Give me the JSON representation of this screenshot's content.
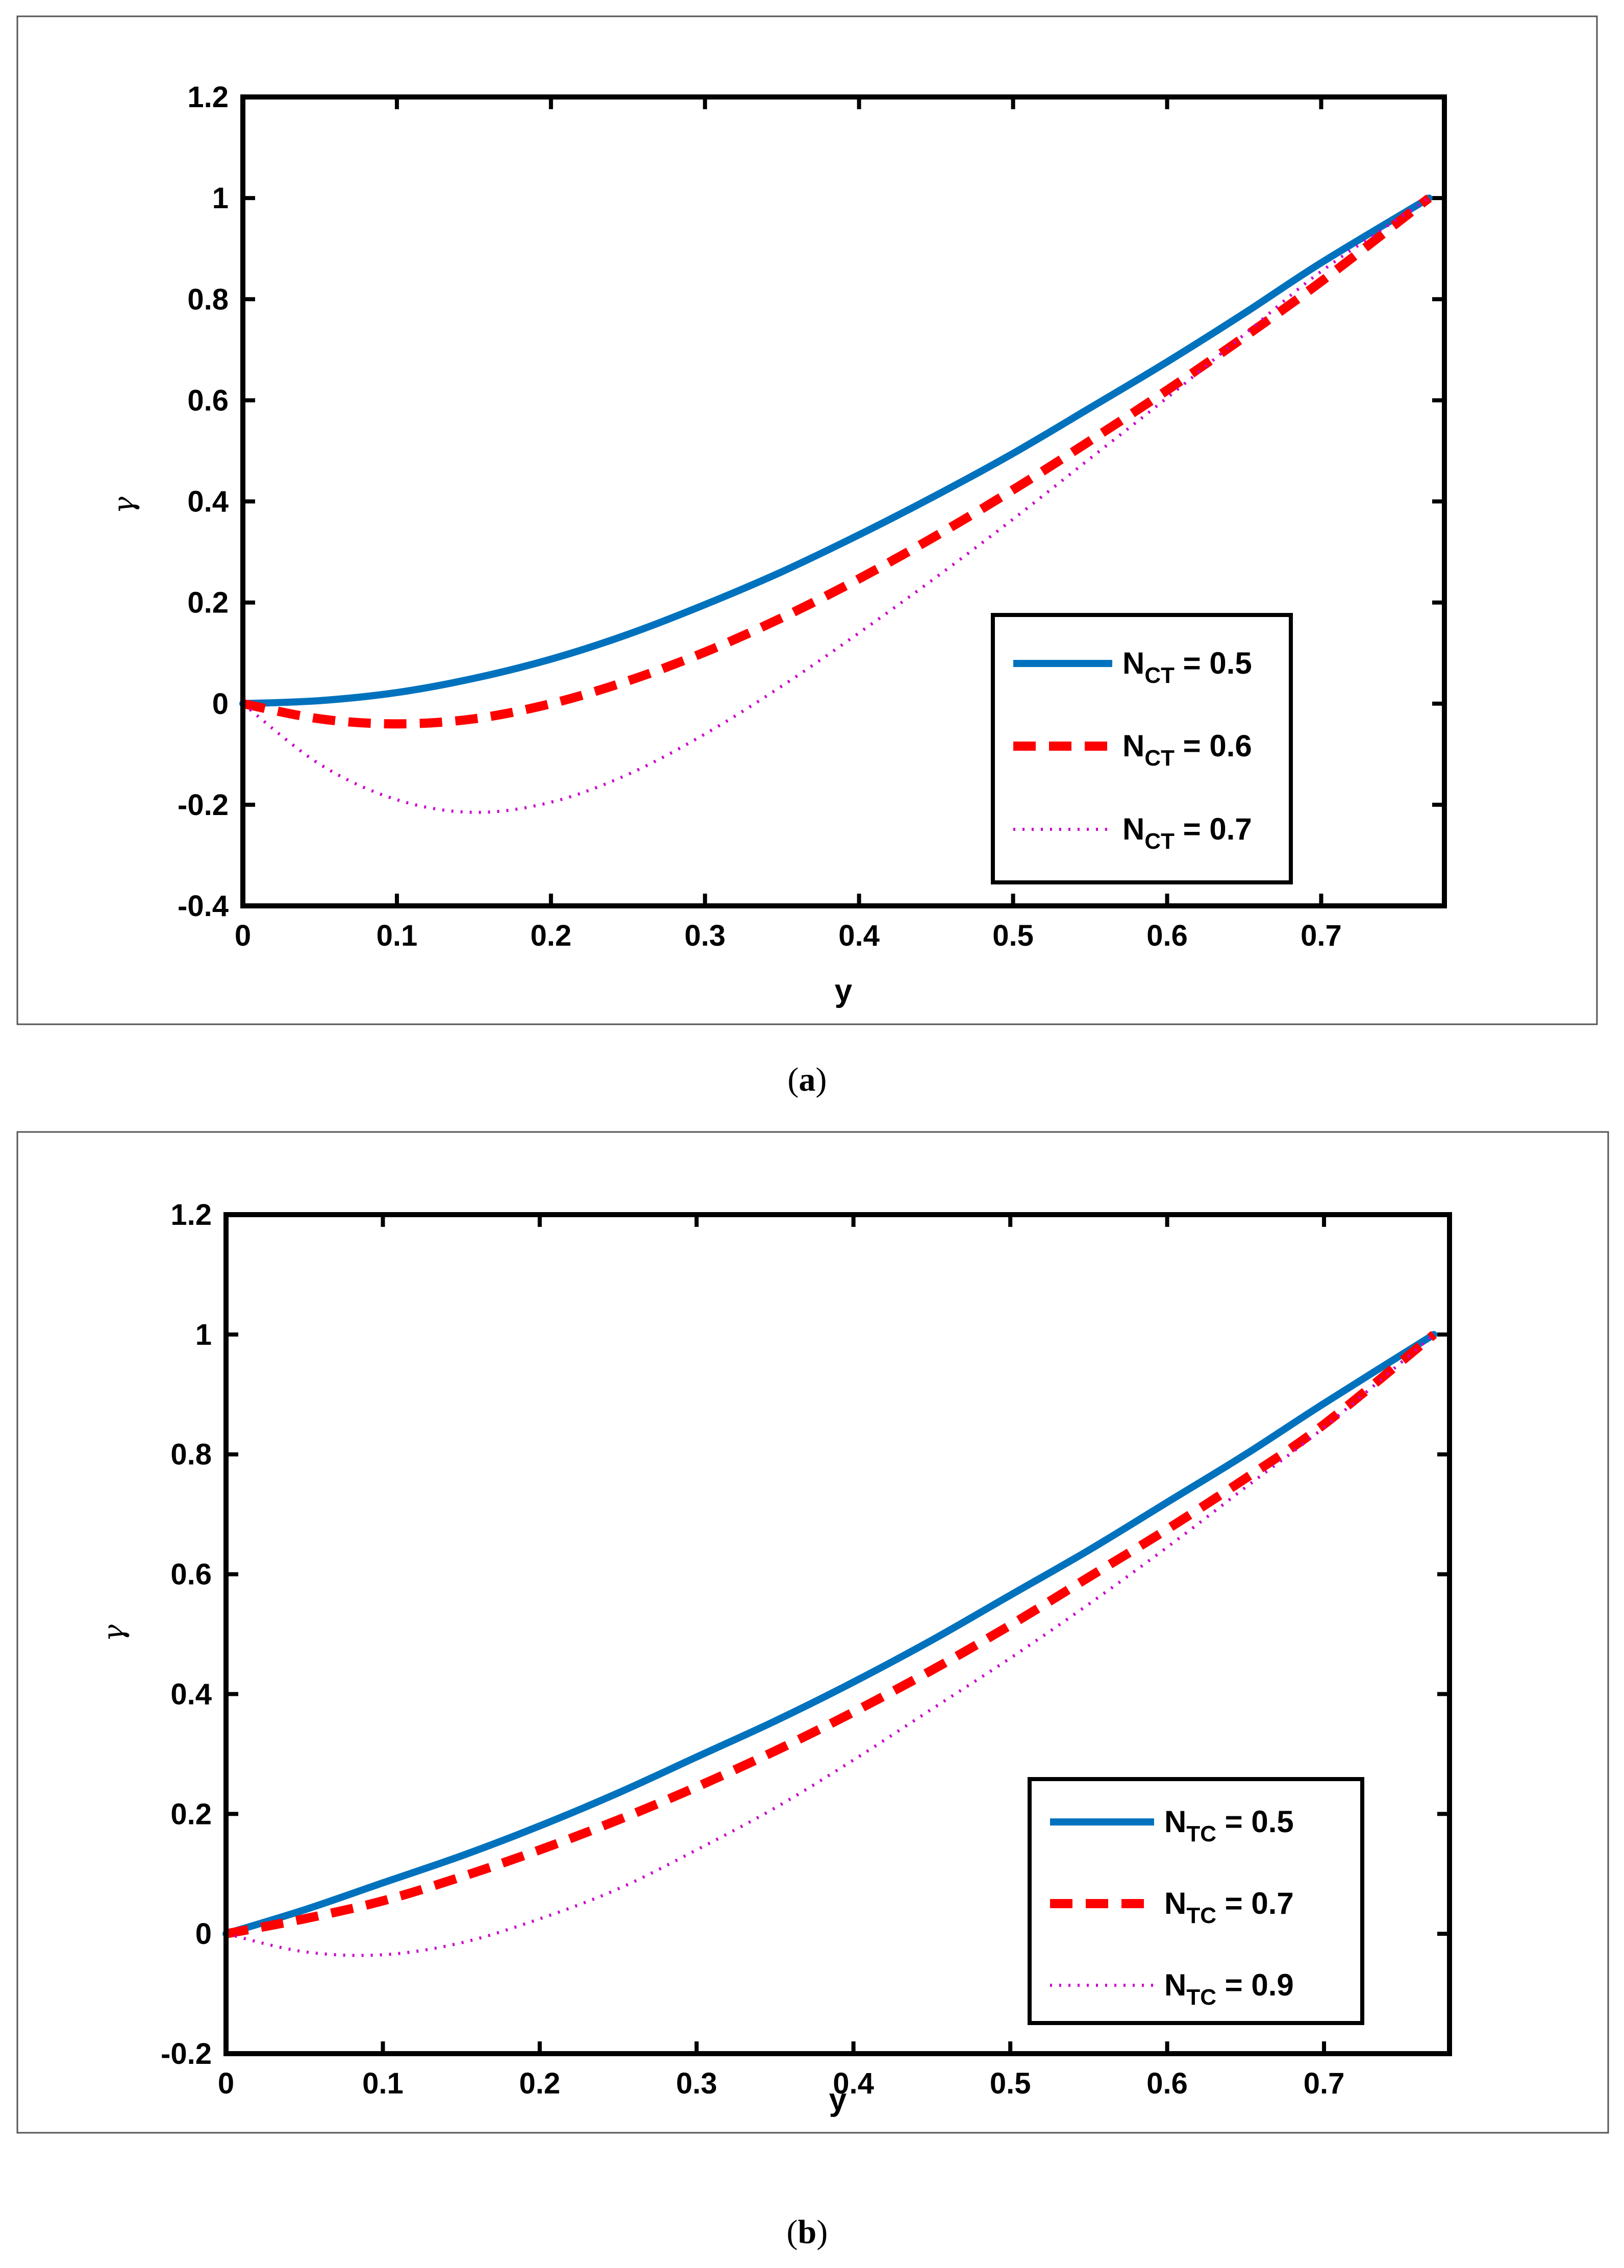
{
  "chart_data": [
    {
      "type": "line",
      "panel": "a",
      "caption_letter": "a",
      "title": "",
      "xlabel": "y",
      "ylabel": "γ",
      "xlim": [
        0,
        0.78
      ],
      "ylim": [
        -0.4,
        1.2
      ],
      "xticks": [
        "0",
        "0.1",
        "0.2",
        "0.3",
        "0.4",
        "0.5",
        "0.6",
        "0.7"
      ],
      "yticks": [
        "-0.4",
        "-0.2",
        "0",
        "0.2",
        "0.4",
        "0.6",
        "0.8",
        "1",
        "1.2"
      ],
      "legend_position": "bottom-right",
      "series": [
        {
          "name": "N_CT = 0.5",
          "label_main": "N",
          "label_sub": "CT",
          "label_rest": " = 0.5",
          "color": "#0072BD",
          "style": "solid",
          "x": [
            0,
            0.05,
            0.1,
            0.15,
            0.2,
            0.25,
            0.3,
            0.35,
            0.4,
            0.45,
            0.5,
            0.55,
            0.6,
            0.65,
            0.7,
            0.77
          ],
          "y": [
            0,
            0.006,
            0.022,
            0.05,
            0.088,
            0.137,
            0.196,
            0.261,
            0.334,
            0.412,
            0.495,
            0.585,
            0.676,
            0.772,
            0.872,
            1.0
          ]
        },
        {
          "name": "N_CT = 0.6",
          "label_main": "N",
          "label_sub": "CT",
          "label_rest": " = 0.6",
          "color": "#FF0000",
          "style": "dashed",
          "x": [
            0,
            0.05,
            0.1,
            0.15,
            0.2,
            0.25,
            0.3,
            0.35,
            0.4,
            0.45,
            0.5,
            0.55,
            0.6,
            0.65,
            0.7,
            0.77
          ],
          "y": [
            0,
            -0.03,
            -0.04,
            -0.03,
            0.0,
            0.045,
            0.102,
            0.17,
            0.247,
            0.332,
            0.423,
            0.52,
            0.62,
            0.725,
            0.835,
            1.0
          ]
        },
        {
          "name": "N_CT = 0.7",
          "label_main": "N",
          "label_sub": "CT",
          "label_rest": " = 0.7",
          "color": "#CC00CC",
          "style": "dotted",
          "x": [
            0,
            0.05,
            0.1,
            0.15,
            0.2,
            0.25,
            0.3,
            0.35,
            0.4,
            0.45,
            0.5,
            0.55,
            0.6,
            0.65,
            0.7,
            0.77
          ],
          "y": [
            0,
            -0.12,
            -0.19,
            -0.215,
            -0.195,
            -0.14,
            -0.06,
            0.035,
            0.14,
            0.25,
            0.365,
            0.485,
            0.605,
            0.73,
            0.855,
            1.0
          ]
        }
      ]
    },
    {
      "type": "line",
      "panel": "b",
      "caption_letter": "b",
      "title": "",
      "xlabel": "y",
      "ylabel": "γ",
      "xlim": [
        0,
        0.78
      ],
      "ylim": [
        -0.2,
        1.2
      ],
      "xticks": [
        "0",
        "0.1",
        "0.2",
        "0.3",
        "0.4",
        "0.5",
        "0.6",
        "0.7"
      ],
      "yticks": [
        "-0.2",
        "0",
        "0.2",
        "0.4",
        "0.6",
        "0.8",
        "1",
        "1.2"
      ],
      "legend_position": "bottom-right",
      "series": [
        {
          "name": "N_TC = 0.5",
          "label_main": "N",
          "label_sub": "TC",
          "label_rest": " = 0.5",
          "color": "#0072BD",
          "style": "solid",
          "x": [
            0,
            0.05,
            0.1,
            0.15,
            0.2,
            0.25,
            0.3,
            0.35,
            0.4,
            0.45,
            0.5,
            0.55,
            0.6,
            0.65,
            0.7,
            0.77
          ],
          "y": [
            0,
            0.04,
            0.085,
            0.13,
            0.18,
            0.235,
            0.295,
            0.355,
            0.42,
            0.49,
            0.565,
            0.64,
            0.72,
            0.8,
            0.885,
            1.0
          ]
        },
        {
          "name": "N_TC = 0.7",
          "label_main": "N",
          "label_sub": "TC",
          "label_rest": " = 0.7",
          "color": "#FF0000",
          "style": "dashed",
          "x": [
            0,
            0.05,
            0.1,
            0.15,
            0.2,
            0.25,
            0.3,
            0.35,
            0.4,
            0.45,
            0.5,
            0.55,
            0.6,
            0.65,
            0.7,
            0.77
          ],
          "y": [
            0,
            0.025,
            0.055,
            0.095,
            0.14,
            0.19,
            0.245,
            0.305,
            0.37,
            0.44,
            0.515,
            0.595,
            0.675,
            0.76,
            0.85,
            1.0
          ]
        },
        {
          "name": "N_TC = 0.9",
          "label_main": "N",
          "label_sub": "TC",
          "label_rest": " = 0.9",
          "color": "#CC00CC",
          "style": "dotted",
          "x": [
            0,
            0.05,
            0.1,
            0.15,
            0.2,
            0.25,
            0.3,
            0.35,
            0.4,
            0.45,
            0.5,
            0.55,
            0.6,
            0.65,
            0.7,
            0.77
          ],
          "y": [
            0,
            -0.03,
            -0.035,
            -0.015,
            0.025,
            0.075,
            0.14,
            0.21,
            0.29,
            0.375,
            0.46,
            0.55,
            0.645,
            0.745,
            0.845,
            1.0
          ]
        }
      ]
    }
  ]
}
